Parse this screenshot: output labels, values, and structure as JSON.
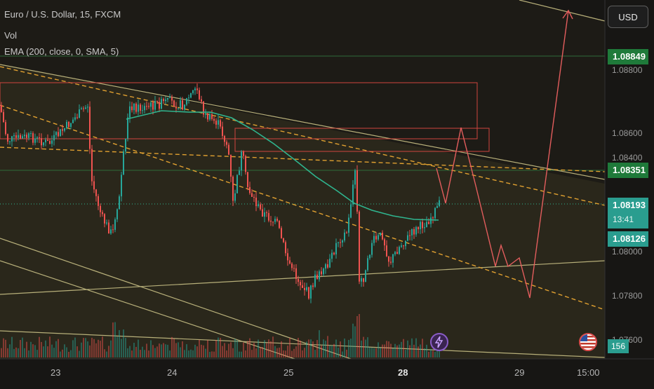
{
  "legend": {
    "title": "Euro / U.S. Dollar, 15, FXCM",
    "vol": "Vol",
    "ema": "EMA (200, close, 0, SMA, 5)"
  },
  "currency_button": "USD",
  "price_axis": [
    "1.08800",
    "1.08600",
    "1.08400",
    "1.08000",
    "1.07800",
    "1.07600"
  ],
  "price_labels": {
    "level_high": "1.08849",
    "level_mid": "1.08351",
    "current_price": "1.08193",
    "countdown": "13:41",
    "ema_value": "1.08126"
  },
  "volume_value": "156",
  "time_axis": [
    "23",
    "24",
    "25",
    "28",
    "29",
    "15:00"
  ],
  "colors": {
    "background": "#171614",
    "up_candle": "#26a69a",
    "down_candle": "#ef5350",
    "ema_line": "#2fb58f",
    "level_green": "#1f7a3a",
    "projection": "#e35d5d",
    "channel": "#b8b07a",
    "dashed": "#e0a030"
  },
  "icons": [
    "lightning-icon",
    "us-flag-icon"
  ]
}
